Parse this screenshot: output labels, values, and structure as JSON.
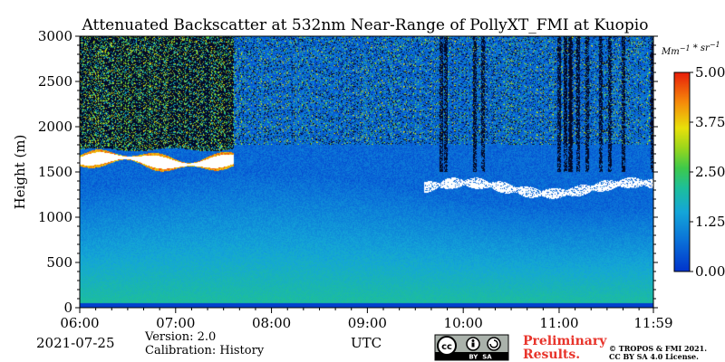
{
  "chart_data": {
    "type": "heatmap",
    "title": "Attenuated Backscatter at 532nm Near-Range of PollyXT_FMI at Kuopio",
    "ylabel": "Height (m)",
    "xlabel": "UTC",
    "xlim": [
      "06:00",
      "11:59"
    ],
    "ylim": [
      0,
      3000
    ],
    "x_ticks": [
      "06:00",
      "07:00",
      "08:00",
      "09:00",
      "10:00",
      "11:00",
      "11:59"
    ],
    "y_ticks": [
      "0",
      "500",
      "1000",
      "1500",
      "2000",
      "2500",
      "3000"
    ],
    "colorbar": {
      "unit": "Mm⁻¹ * sr⁻¹",
      "range": [
        0,
        5
      ],
      "ticks": [
        "0.00",
        "1.25",
        "2.50",
        "3.75",
        "5.00"
      ],
      "colormap": "jet"
    },
    "features": {
      "cloud_layer_early": {
        "start": "06:00",
        "end": "07:36",
        "base_m": 1500,
        "top_m": 1750
      },
      "cloud_layer_late": {
        "start": "09:35",
        "end": "11:59",
        "base_m": 1200,
        "top_m": 1450
      }
    }
  },
  "footer": {
    "date": "2021-07-25",
    "version": "Version: 2.0",
    "calibration": "Calibration: History",
    "utc_label": "UTC",
    "license_badge": "cc-by-sa-icon",
    "license_badge_text": "BY  SA",
    "preliminary_line1": "Preliminary",
    "preliminary_line2": "Results.",
    "copyright_line1": "© TROPOS & FMI 2021.",
    "copyright_line2": "CC BY SA 4.0 License."
  }
}
